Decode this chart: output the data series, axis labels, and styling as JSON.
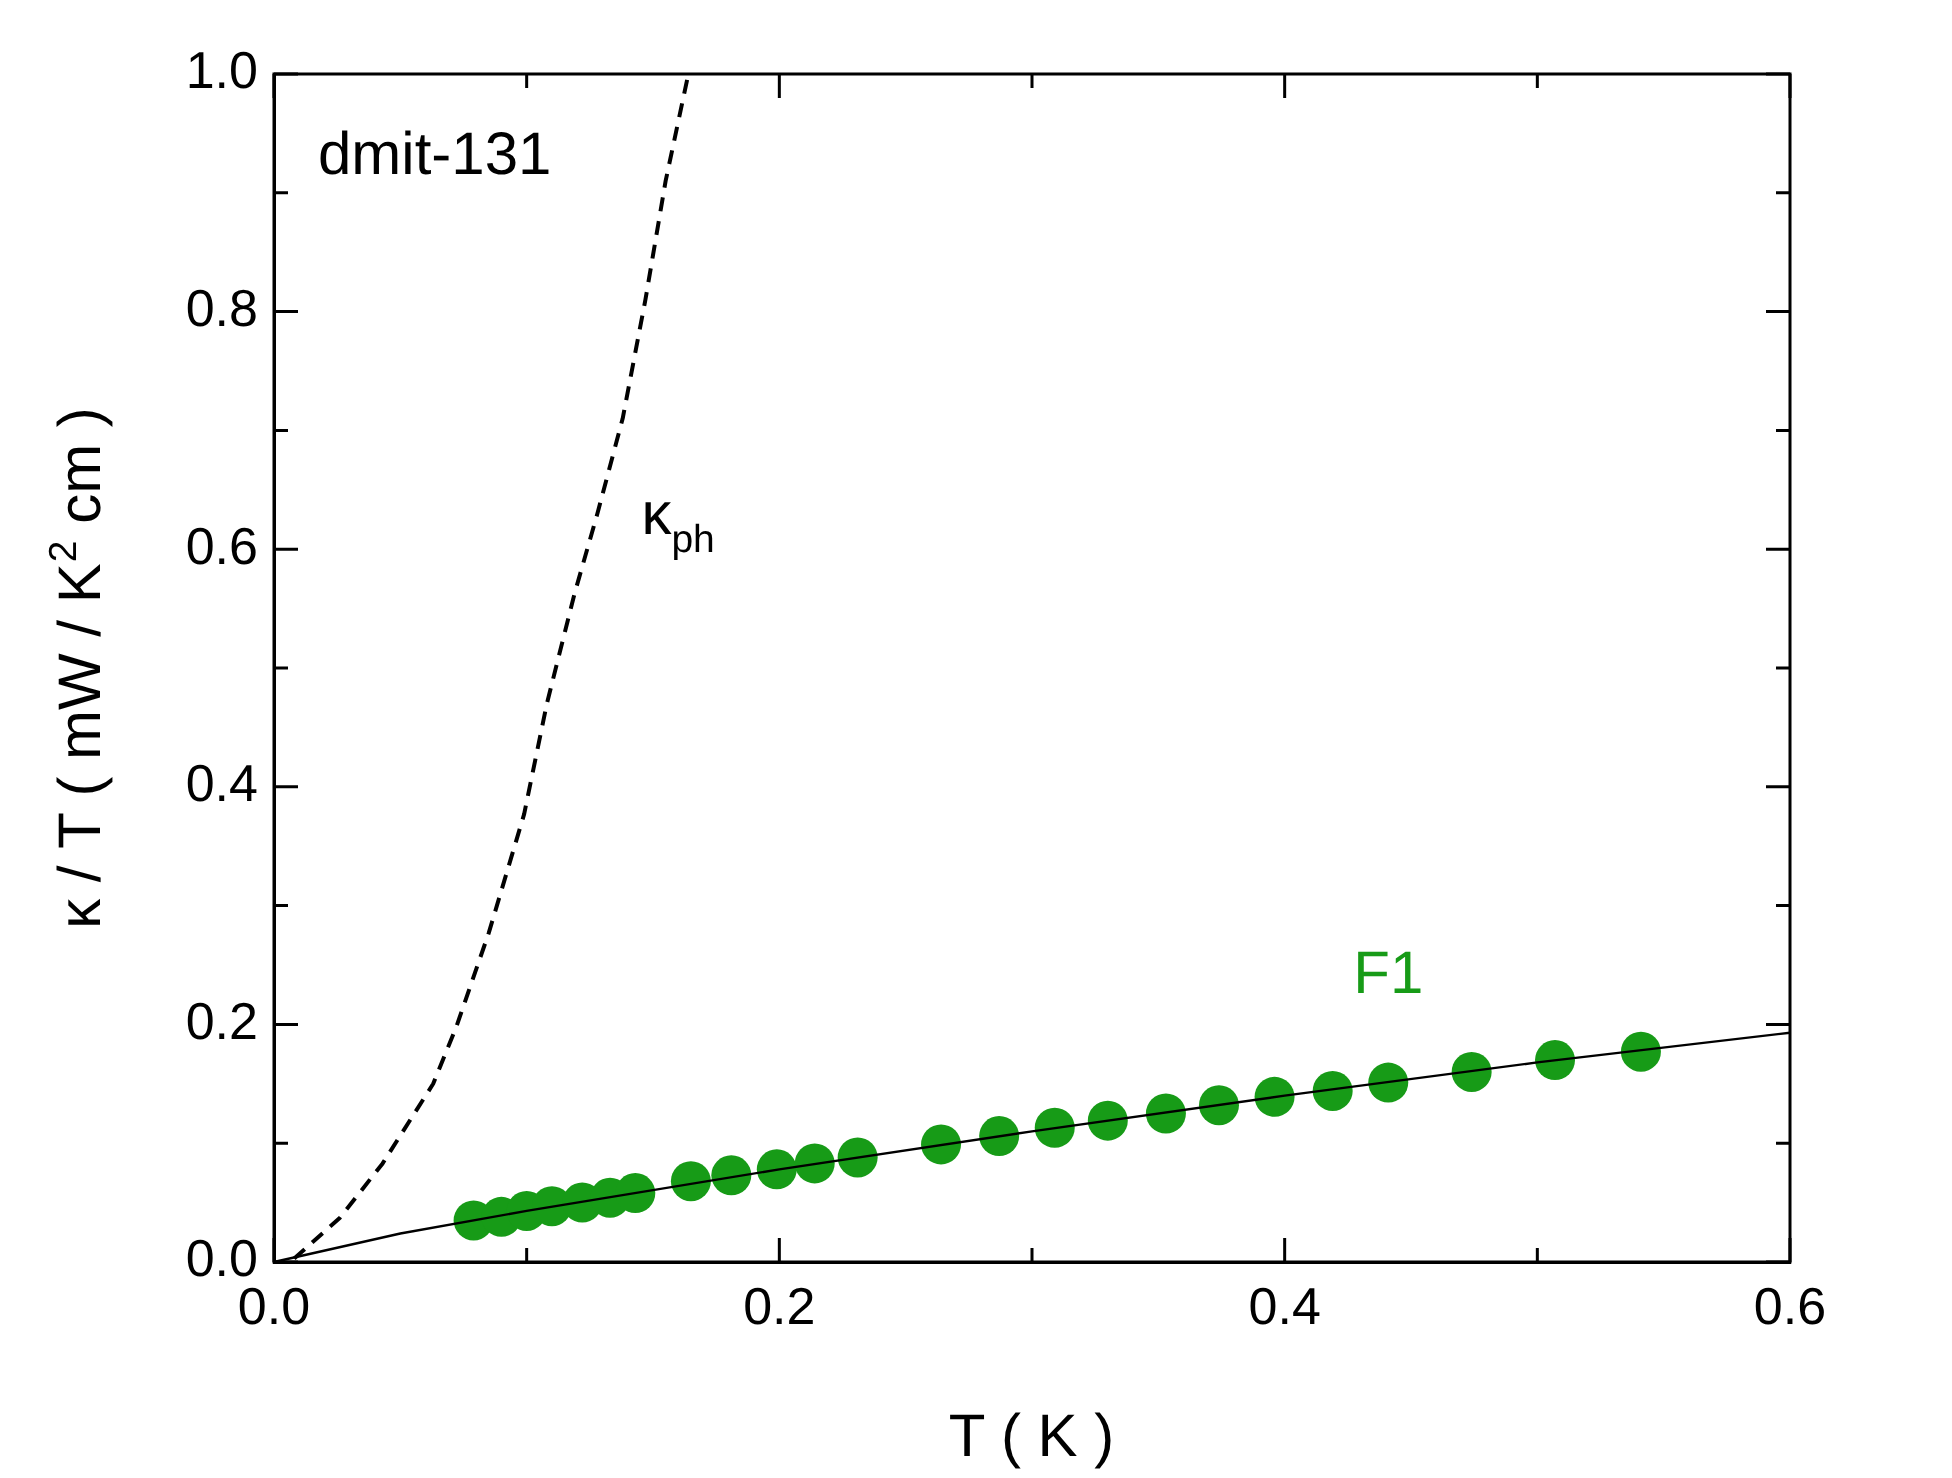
{
  "chart_data": {
    "type": "scatter",
    "xlabel": "T ( K )",
    "ylabel": "κ / T ( mW / K$^{2}$ cm )",
    "xlim": [
      0,
      0.6
    ],
    "ylim": [
      0,
      1
    ],
    "xticks": [
      {
        "value": 0,
        "label": "0.0"
      },
      {
        "value": 0.1,
        "label": null
      },
      {
        "value": 0.2,
        "label": "0.2"
      },
      {
        "value": 0.3,
        "label": null
      },
      {
        "value": 0.4,
        "label": "0.4"
      },
      {
        "value": 0.5,
        "label": null
      },
      {
        "value": 0.6,
        "label": "0.6"
      }
    ],
    "yticks": [
      {
        "value": 0,
        "label": "0.0"
      },
      {
        "value": 0.1,
        "label": null
      },
      {
        "value": 0.2,
        "label": "0.2"
      },
      {
        "value": 0.3,
        "label": null
      },
      {
        "value": 0.4,
        "label": "0.4"
      },
      {
        "value": 0.5,
        "label": null
      },
      {
        "value": 0.6,
        "label": "0.6"
      },
      {
        "value": 0.7,
        "label": null
      },
      {
        "value": 0.8,
        "label": "0.8"
      },
      {
        "value": 0.9,
        "label": null
      },
      {
        "value": 1,
        "label": "1.0"
      }
    ],
    "grid": false,
    "legend": false,
    "annotations": [
      "dmit-131"
    ],
    "series": [
      {
        "type": "line",
        "name": "κ$_{ph}$",
        "color": "#000000",
        "line_style": "dashed",
        "marker": "none",
        "x": [
          0.008,
          0.026,
          0.043,
          0.063,
          0.072,
          0.085,
          0.099,
          0.108,
          0.119,
          0.128,
          0.138,
          0.147,
          0.155,
          0.164
        ],
        "values": [
          0.003,
          0.037,
          0.083,
          0.15,
          0.197,
          0.277,
          0.377,
          0.47,
          0.563,
          0.63,
          0.71,
          0.81,
          0.91,
          1.0
        ]
      },
      {
        "type": "line",
        "color": "#000000",
        "line_style": "solid",
        "marker": "none",
        "x": [
          0,
          0.05,
          0.1,
          0.2,
          0.3,
          0.4,
          0.5,
          0.6
        ],
        "values": [
          0,
          0.024,
          0.043,
          0.078,
          0.11,
          0.14,
          0.168,
          0.193
        ]
      },
      {
        "type": "scatter",
        "name": "F1",
        "color": "#179b17",
        "marker": "circle",
        "x": [
          0.079,
          0.09,
          0.1,
          0.11,
          0.122,
          0.133,
          0.143,
          0.165,
          0.181,
          0.199,
          0.214,
          0.231,
          0.264,
          0.287,
          0.309,
          0.33,
          0.353,
          0.374,
          0.396,
          0.419,
          0.441,
          0.474,
          0.507,
          0.541
        ],
        "values": [
          0.035,
          0.038,
          0.043,
          0.047,
          0.05,
          0.054,
          0.058,
          0.068,
          0.073,
          0.078,
          0.083,
          0.088,
          0.099,
          0.106,
          0.113,
          0.119,
          0.125,
          0.132,
          0.139,
          0.144,
          0.151,
          0.16,
          0.17,
          0.177
        ]
      }
    ]
  }
}
